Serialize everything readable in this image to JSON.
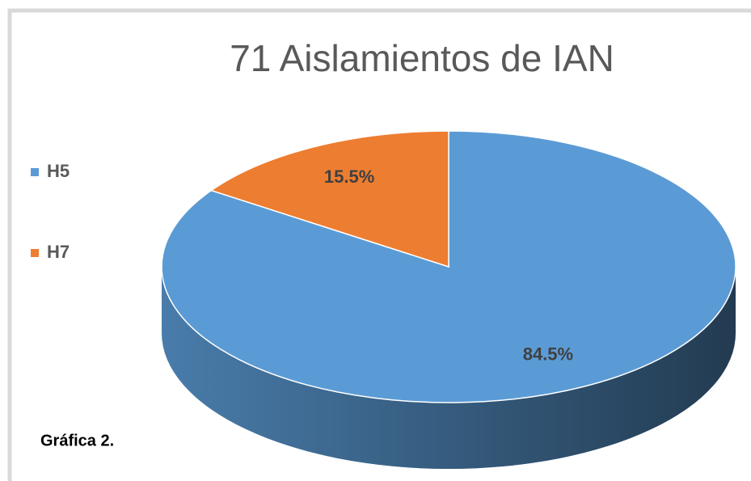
{
  "chart_data": {
    "type": "pie",
    "title": "71 Aislamientos de IAN",
    "categories": [
      "H5",
      "H7"
    ],
    "values": [
      84.5,
      15.5
    ],
    "value_labels": [
      "84.5%",
      "15.5%"
    ],
    "colors": [
      "#5b9bd5",
      "#ed7d31"
    ],
    "legend": "left"
  },
  "caption": "Gráfica 2."
}
